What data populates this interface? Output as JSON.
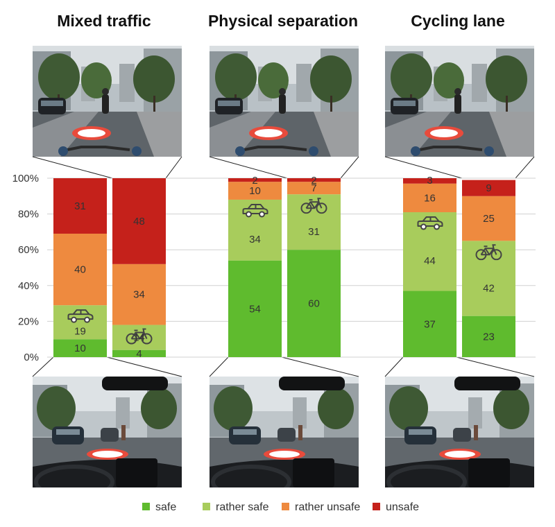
{
  "chart_data": {
    "type": "bar",
    "stacked": true,
    "percent_axis": true,
    "ylim": [
      0,
      100
    ],
    "yticks": [
      "0%",
      "20%",
      "40%",
      "60%",
      "80%",
      "100%"
    ],
    "grid": true,
    "legend_position": "bottom",
    "categories_order": [
      "safe",
      "rather safe",
      "rather unsafe",
      "unsafe"
    ],
    "colors": {
      "safe": "#5fbb2e",
      "rather safe": "#a8cc5c",
      "rather unsafe": "#ee8a3f",
      "unsafe": "#c5211b"
    },
    "groups": [
      {
        "title": "Mixed traffic",
        "bars": [
          {
            "icon": "car-icon",
            "values": [
              10,
              19,
              40,
              31
            ]
          },
          {
            "icon": "bicycle-icon",
            "values": [
              4,
              14,
              34,
              48
            ]
          }
        ]
      },
      {
        "title": "Physical separation",
        "bars": [
          {
            "icon": "car-icon",
            "values": [
              54,
              34,
              10,
              2
            ]
          },
          {
            "icon": "bicycle-icon",
            "values": [
              60,
              31,
              7,
              2
            ]
          }
        ]
      },
      {
        "title": "Cycling lane",
        "bars": [
          {
            "icon": "car-icon",
            "values": [
              37,
              44,
              16,
              3
            ]
          },
          {
            "icon": "bicycle-icon",
            "values": [
              23,
              42,
              25,
              9
            ]
          }
        ]
      }
    ],
    "legend": [
      "safe",
      "rather safe",
      "rather unsafe",
      "unsafe"
    ]
  }
}
